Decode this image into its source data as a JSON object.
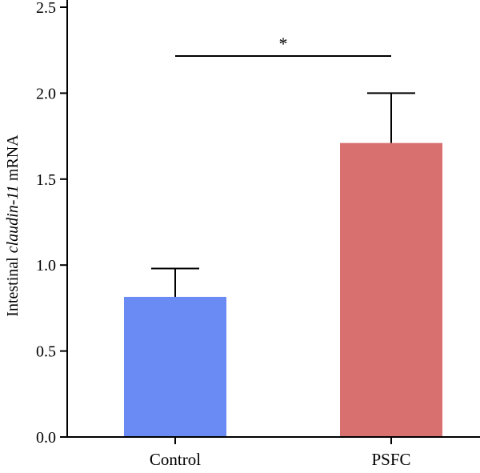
{
  "chart_data": {
    "type": "bar",
    "title": "",
    "xlabel": "",
    "ylabel": {
      "prefix": "Intestinal ",
      "gene": "claudin-11",
      "suffix": " mRNA"
    },
    "categories": [
      "Control",
      "PSFC"
    ],
    "values": [
      0.815,
      1.71
    ],
    "error_upper": [
      0.165,
      0.29
    ],
    "colors": [
      "#6a8af4",
      "#d97070"
    ],
    "ylim": [
      0,
      2.5
    ],
    "yticks": [
      "0.0",
      "0.5",
      "1.0",
      "1.5",
      "2.0",
      "2.5"
    ],
    "significance": {
      "between": [
        "Control",
        "PSFC"
      ],
      "label": "*"
    },
    "grid": false,
    "legend": "none"
  }
}
